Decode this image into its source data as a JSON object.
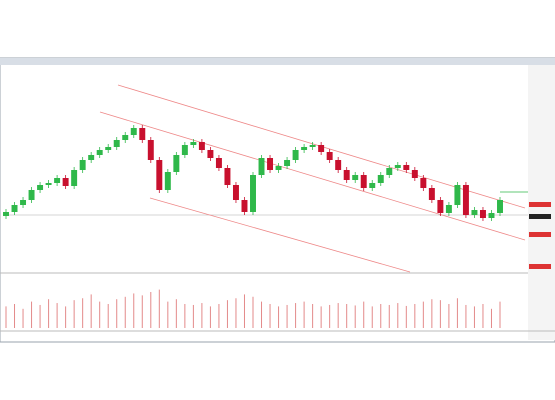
{
  "chart_data": {
    "type": "candlestick",
    "open": [
      27,
      29,
      32.5,
      35,
      40,
      42.5,
      43.5,
      46,
      42,
      50,
      55,
      57.5,
      60,
      61.5,
      65,
      67.5,
      71,
      65,
      55,
      40,
      49,
      57.5,
      62.5,
      64,
      60,
      56,
      51,
      42.5,
      35,
      29,
      47.5,
      56,
      50,
      52,
      55,
      60,
      61.5,
      62.5,
      59,
      55,
      50,
      45,
      47.5,
      41,
      43.5,
      47.5,
      51,
      52.5,
      50,
      46,
      41,
      35,
      28.5,
      32.5,
      42.5,
      27.5,
      30,
      26,
      28.5
    ],
    "high": [
      30.5,
      34,
      36.5,
      41.5,
      44,
      45,
      47.5,
      47.5,
      51.5,
      56.5,
      59,
      61.5,
      63,
      66.5,
      69,
      72.5,
      72.5,
      66.5,
      56.5,
      50.5,
      59,
      64,
      65.5,
      65.5,
      61.5,
      57.5,
      52.5,
      44,
      36.5,
      49,
      57.5,
      57.5,
      53.5,
      56.5,
      61.5,
      63,
      64,
      64,
      60.5,
      56.5,
      51.5,
      49,
      49,
      45,
      49,
      52.5,
      54,
      54,
      51.5,
      47.5,
      42.5,
      36.5,
      34,
      44,
      44,
      31.5,
      31.5,
      30,
      36.5
    ],
    "low": [
      25.5,
      27.5,
      31,
      33.5,
      38.5,
      41,
      42,
      40.5,
      40.5,
      48.5,
      53.5,
      56,
      58.5,
      60,
      63.5,
      66,
      63.5,
      53.5,
      38.5,
      38.5,
      47.5,
      56,
      61,
      58.5,
      54.5,
      49.5,
      41,
      33.5,
      27.5,
      27.5,
      46,
      48.5,
      48.5,
      50.5,
      53.5,
      58.5,
      60,
      57.5,
      53.5,
      48.5,
      43.5,
      43.5,
      39.5,
      39.5,
      42,
      46,
      49.5,
      48.5,
      44.5,
      39.5,
      33.5,
      27,
      27,
      31,
      26,
      26,
      24.5,
      24.5,
      27
    ],
    "close": [
      29,
      32.5,
      35,
      40,
      42.5,
      43.5,
      46,
      42,
      50,
      55,
      57.5,
      60,
      61.5,
      65,
      67.5,
      71,
      65,
      55,
      40,
      49,
      57.5,
      62.5,
      64,
      60,
      56,
      51,
      42.5,
      35,
      29,
      47.5,
      56,
      50,
      52,
      55,
      60,
      61.5,
      62.5,
      59,
      55,
      50,
      45,
      47.5,
      41,
      43.5,
      47.5,
      51,
      52.5,
      50,
      46,
      41,
      35,
      28.5,
      32.5,
      42.5,
      27.5,
      30,
      26,
      28.5,
      35
    ],
    "volume": [
      45,
      50,
      40,
      55,
      48,
      60,
      52,
      45,
      58,
      62,
      70,
      55,
      50,
      60,
      65,
      72,
      68,
      75,
      80,
      55,
      60,
      50,
      48,
      52,
      45,
      50,
      58,
      62,
      70,
      65,
      55,
      50,
      45,
      48,
      52,
      55,
      50,
      45,
      48,
      52,
      50,
      47,
      55,
      45,
      50,
      48,
      52,
      46,
      50,
      55,
      60,
      58,
      50,
      62,
      48,
      45,
      50,
      40,
      55
    ],
    "ylim": [
      0,
      100
    ],
    "volume_lim": [
      0,
      100
    ],
    "up_color": "#2fb84a",
    "down_color": "#c8102e",
    "volume_color": "#e38a8a"
  }
}
